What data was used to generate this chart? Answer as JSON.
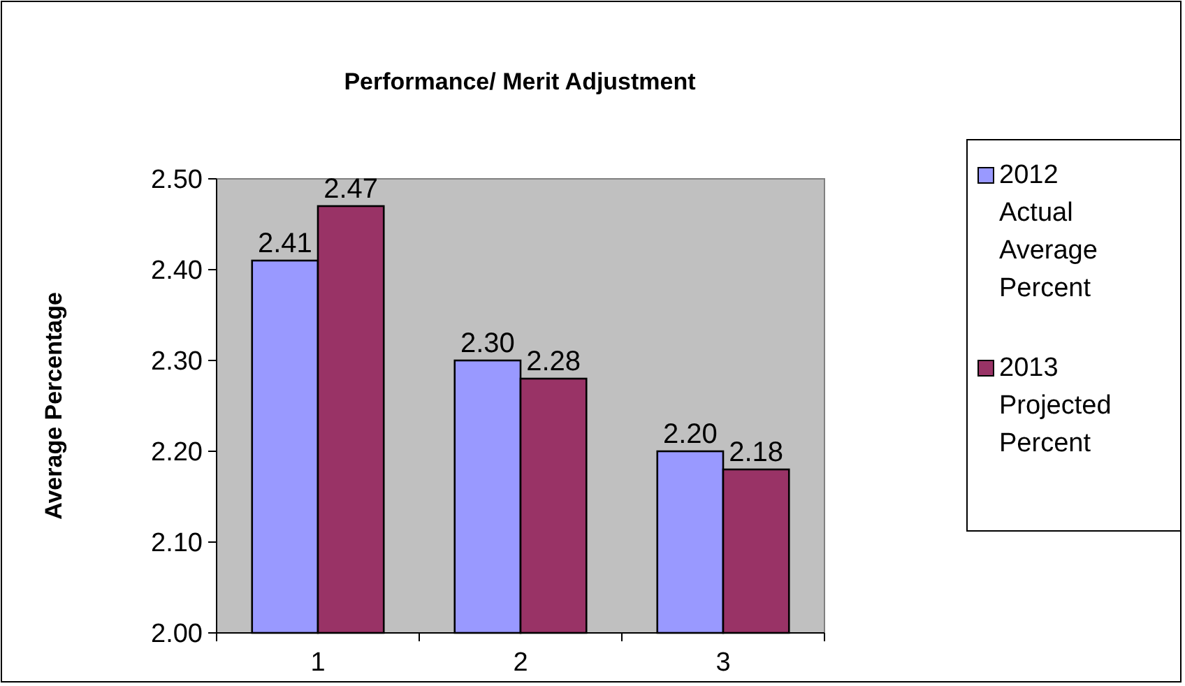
{
  "chart_data": {
    "type": "bar",
    "title": "Performance/ Merit Adjustment",
    "ylabel": "Average Percentage",
    "categories": [
      "1",
      "2",
      "3"
    ],
    "series": [
      {
        "name": "2012 Actual Average Percent",
        "color": "#9999ff",
        "values": [
          2.41,
          2.3,
          2.2
        ],
        "value_labels": [
          "2.41",
          "2.30",
          "2.20"
        ]
      },
      {
        "name": "2013 Projected Percent",
        "color": "#993366",
        "values": [
          2.47,
          2.28,
          2.18
        ],
        "value_labels": [
          "2.47",
          "2.28",
          "2.18"
        ]
      }
    ],
    "ylim": [
      2.0,
      2.5
    ],
    "yticks": [
      {
        "value": 2.0,
        "label": "2.00"
      },
      {
        "value": 2.1,
        "label": "2.10"
      },
      {
        "value": 2.2,
        "label": "2.20"
      },
      {
        "value": 2.3,
        "label": "2.30"
      },
      {
        "value": 2.4,
        "label": "2.40"
      },
      {
        "value": 2.5,
        "label": "2.50"
      }
    ],
    "grid": false,
    "legend": "right"
  }
}
